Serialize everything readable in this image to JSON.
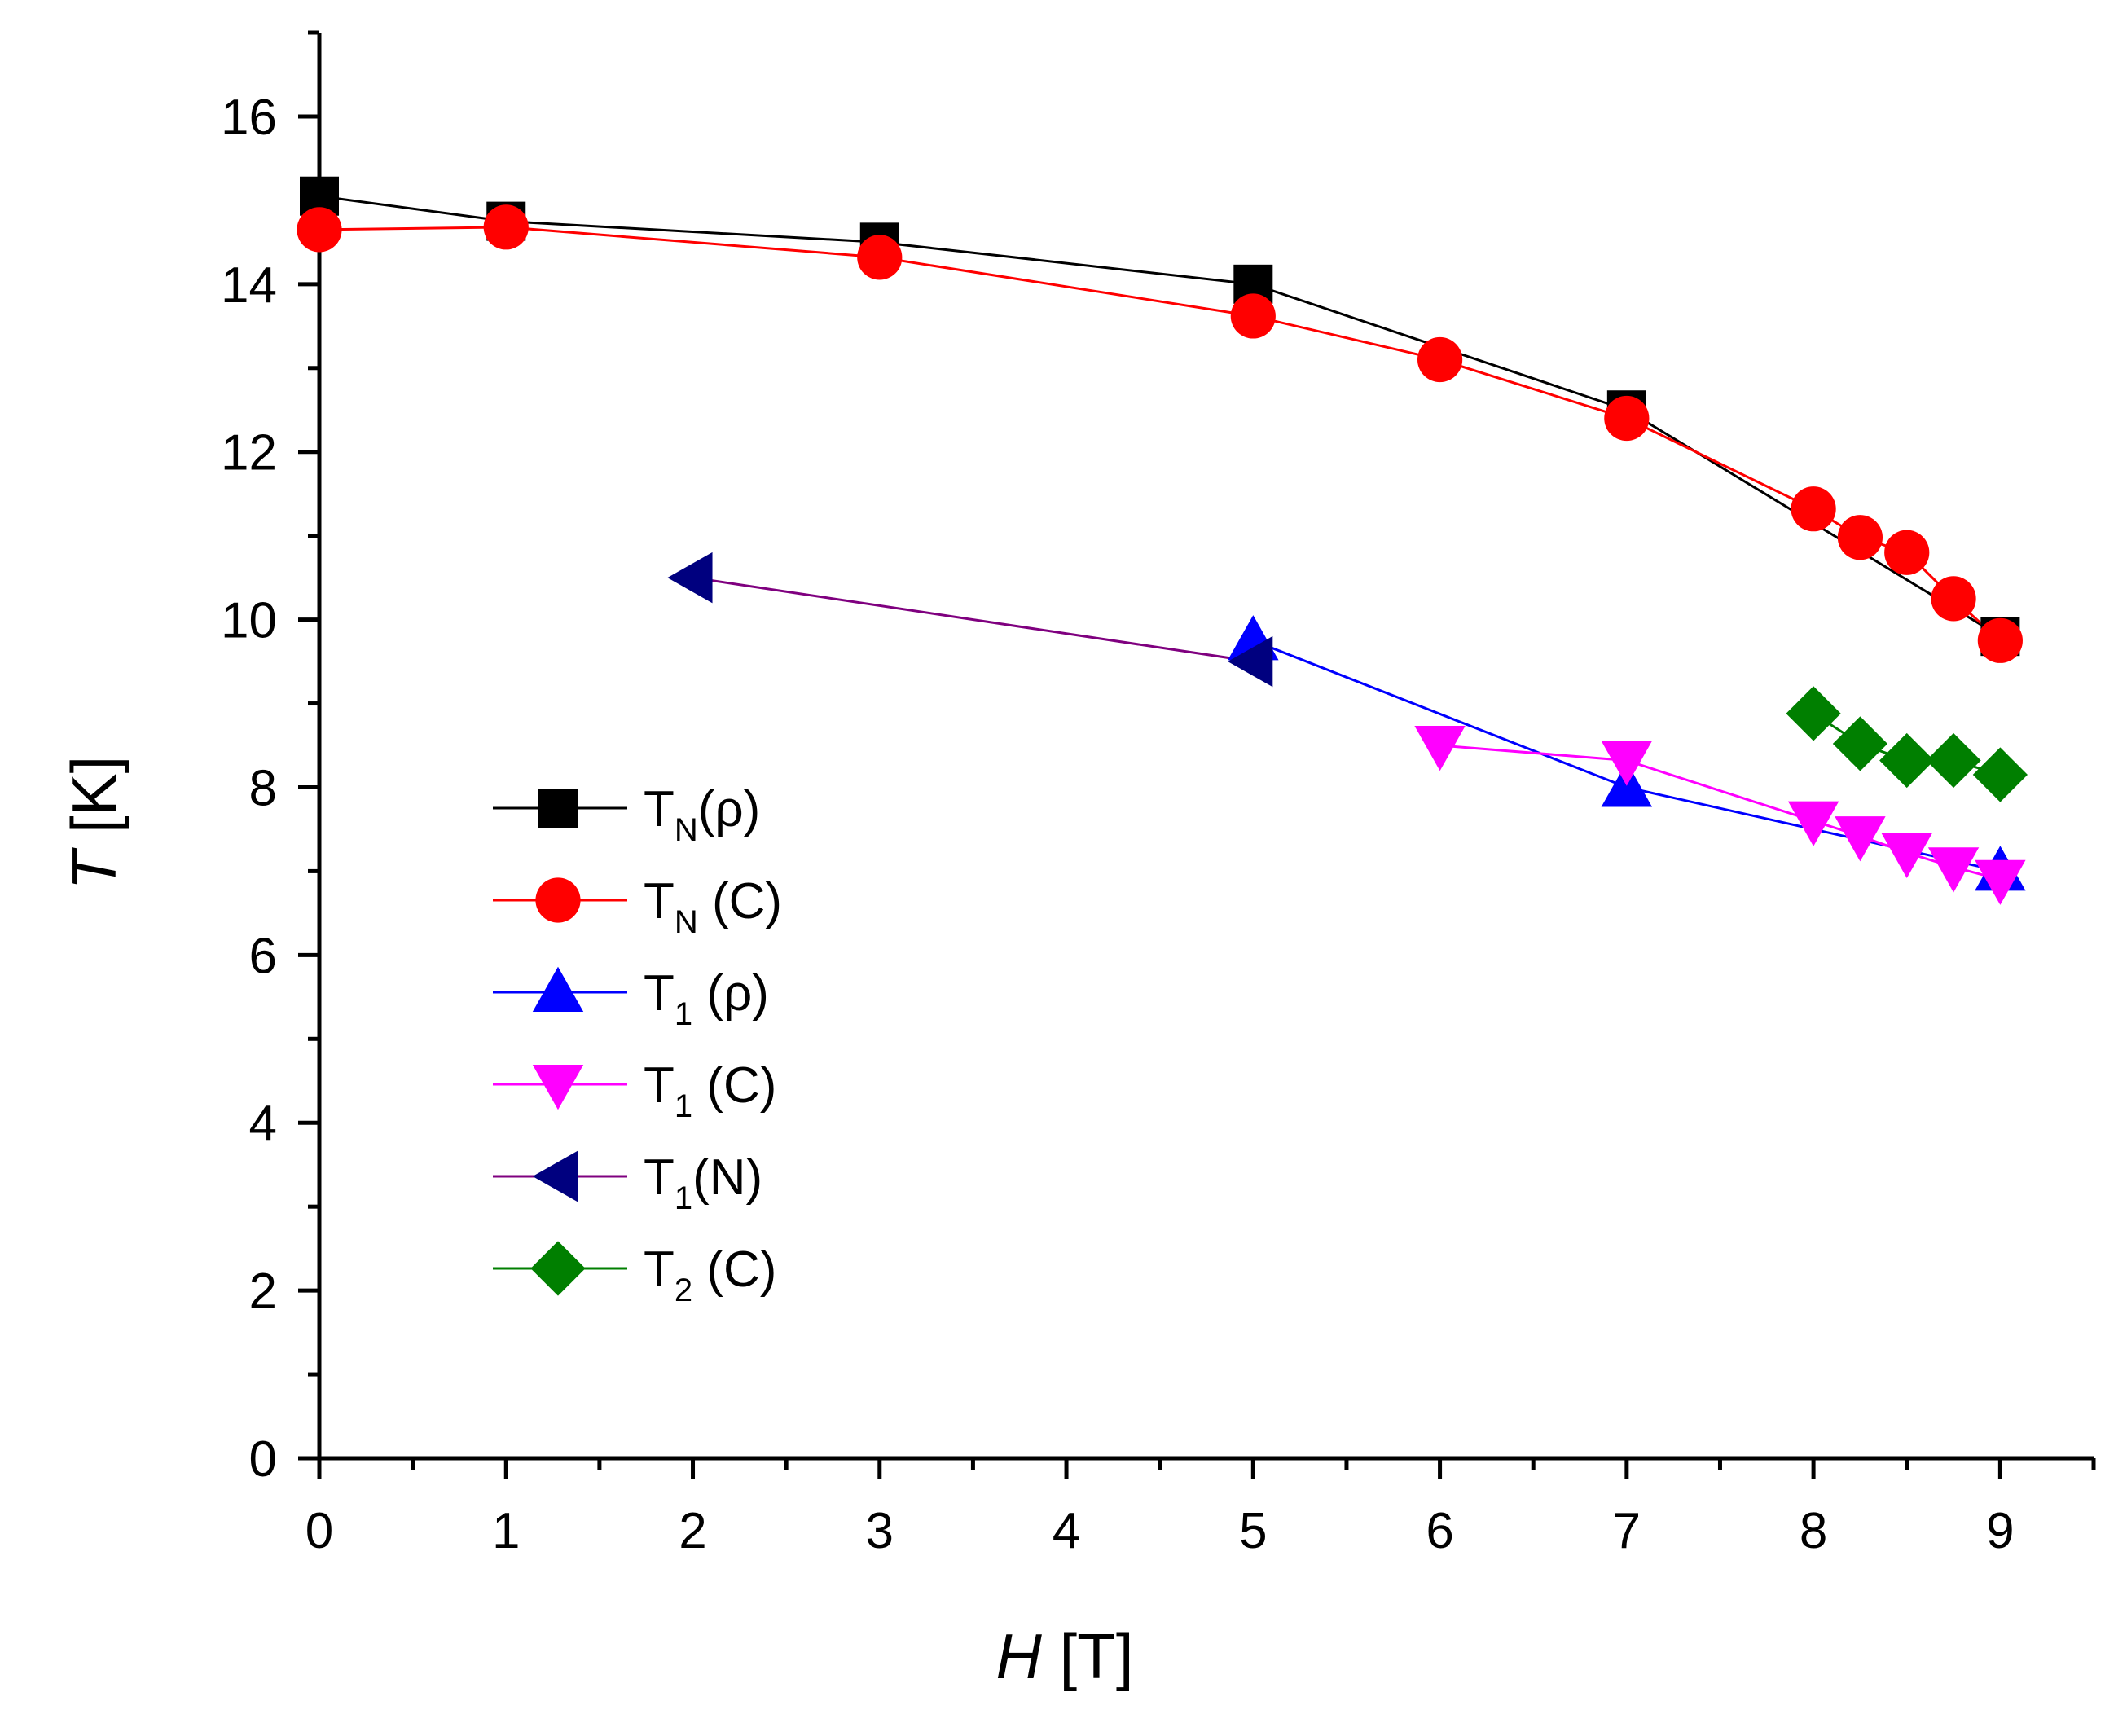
{
  "chart_data": {
    "type": "scatter",
    "title": "",
    "xlabel": {
      "var": "H",
      "unit": " [T]"
    },
    "ylabel": {
      "var": "T",
      "unit": " [K]"
    },
    "xlim": [
      0,
      9.5
    ],
    "ylim": [
      0,
      17
    ],
    "x_ticks": [
      0,
      1,
      2,
      3,
      4,
      5,
      6,
      7,
      8,
      9
    ],
    "y_ticks": [
      0,
      2,
      4,
      6,
      8,
      10,
      12,
      14,
      16
    ],
    "grid": false,
    "legend_position": "lower-left",
    "series": [
      {
        "name": "TN(ρ)",
        "label_main": "T",
        "label_sub": "N",
        "label_rest": "(ρ)",
        "color": "#000000",
        "marker": "square",
        "x": [
          0,
          1,
          3,
          5,
          7,
          9
        ],
        "y": [
          15.05,
          14.75,
          14.5,
          14.0,
          12.5,
          9.8
        ]
      },
      {
        "name": "TN (C)",
        "label_main": "T",
        "label_sub": "N",
        "label_rest": " (C)",
        "color": "#ff0000",
        "marker": "circle",
        "x": [
          0,
          1,
          3,
          5,
          6,
          7,
          8,
          8.25,
          8.5,
          8.75,
          9
        ],
        "y": [
          14.65,
          14.68,
          14.32,
          13.62,
          13.1,
          12.4,
          11.32,
          10.98,
          10.8,
          10.25,
          9.75
        ]
      },
      {
        "name": "T1 (ρ)",
        "label_main": "T",
        "label_sub": "1",
        "label_rest": " (ρ)",
        "color": "#0000ff",
        "marker": "triangle-up",
        "x": [
          5,
          7,
          9
        ],
        "y": [
          9.75,
          8.0,
          7.0
        ]
      },
      {
        "name": "T1 (C)",
        "label_main": "T",
        "label_sub": "1",
        "label_rest": " (C)",
        "color": "#ff00ff",
        "marker": "triangle-down",
        "x": [
          6,
          7,
          8,
          8.25,
          8.5,
          8.75,
          9
        ],
        "y": [
          8.5,
          8.32,
          7.6,
          7.42,
          7.22,
          7.05,
          6.9
        ]
      },
      {
        "name": "T1(N)",
        "label_main": "T",
        "label_sub": "1",
        "label_rest": "(N)",
        "color": "#00007f",
        "line_color": "#7f007f",
        "marker": "triangle-left",
        "x": [
          2,
          5
        ],
        "y": [
          10.5,
          9.5
        ]
      },
      {
        "name": "T2 (C)",
        "label_main": "T",
        "label_sub": "2",
        "label_rest": " (C)",
        "color": "#007f00",
        "marker": "diamond",
        "x": [
          8,
          8.25,
          8.5,
          8.75,
          9
        ],
        "y": [
          8.88,
          8.52,
          8.32,
          8.32,
          8.15
        ]
      }
    ]
  }
}
